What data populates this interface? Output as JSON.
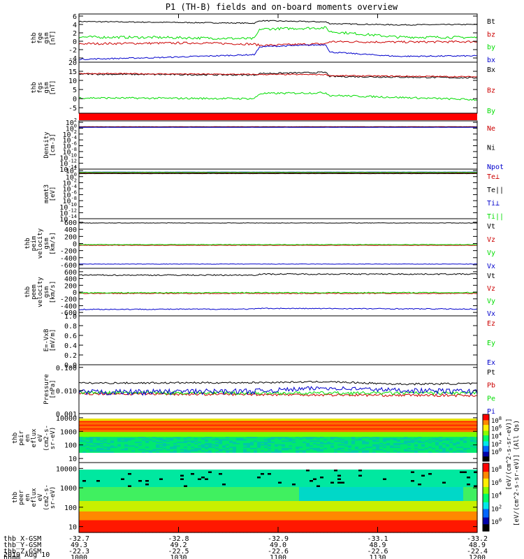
{
  "title": "P1  (TH-B) fields and on-board moments overview",
  "date": "2019 Aug 10",
  "x_axis": {
    "tick_labels": [
      "1000",
      "1030",
      "1100",
      "1130",
      "1200"
    ],
    "rows": [
      {
        "label": "thb_X-GSM",
        "values": [
          "-32.7",
          "-32.8",
          "-32.9",
          "-33.1",
          "-33.2"
        ]
      },
      {
        "label": "thb_Y-GSM",
        "values": [
          "49.3",
          "49.2",
          "49.0",
          "48.9",
          "48.9"
        ]
      },
      {
        "label": "thb_Z-GSM",
        "values": [
          "-22.3",
          "-22.5",
          "-22.6",
          "-22.6",
          "-22.4"
        ]
      },
      {
        "label": "hhmm",
        "values": [
          "1000",
          "1030",
          "1100",
          "1130",
          "1200"
        ]
      }
    ]
  },
  "colors": {
    "black": "#000000",
    "red": "#cc0000",
    "green": "#00dd00",
    "blue": "#0000cc"
  },
  "colorbar": {
    "label": "[eV/(cm^2-s-sr-eV)] (All Qs)",
    "overlap_label": "[eV/(cm^2-s-sr-eV)]",
    "ticks": [
      "10^8",
      "10^6",
      "10^4",
      "10^2",
      "10^0"
    ]
  },
  "chart_data": [
    {
      "type": "line",
      "ylabel": [
        "thb",
        "fge",
        "gsm",
        "[nT]"
      ],
      "ylim": [
        -5,
        6.5
      ],
      "yticks": [
        "6",
        "4",
        "2",
        "0",
        "-2",
        "-4"
      ],
      "tick_values": [
        6,
        4,
        2,
        0,
        -2,
        -4
      ],
      "x_range_hhmm": [
        "1000",
        "1200"
      ],
      "series": [
        {
          "name": "Bt",
          "color": "black",
          "noise": 0.12,
          "points": [
            [
              0,
              4.7
            ],
            [
              0.44,
              4.3
            ],
            [
              0.455,
              4.9
            ],
            [
              0.62,
              4.6
            ],
            [
              0.63,
              4.2
            ],
            [
              0.8,
              3.9
            ],
            [
              1,
              4.0
            ]
          ]
        },
        {
          "name": "bz",
          "color": "red",
          "noise": 0.25,
          "points": [
            [
              0,
              -0.6
            ],
            [
              0.3,
              -0.4
            ],
            [
              0.44,
              -0.7
            ],
            [
              0.455,
              -1.0
            ],
            [
              0.62,
              -0.6
            ],
            [
              0.63,
              -0.1
            ],
            [
              0.8,
              -0.2
            ],
            [
              1,
              -0.1
            ]
          ]
        },
        {
          "name": "by",
          "color": "green",
          "noise": 0.3,
          "points": [
            [
              0,
              1.0
            ],
            [
              0.2,
              0.9
            ],
            [
              0.44,
              0.6
            ],
            [
              0.455,
              2.9
            ],
            [
              0.62,
              3.2
            ],
            [
              0.63,
              2.3
            ],
            [
              0.8,
              1.0
            ],
            [
              1,
              0.9
            ]
          ]
        },
        {
          "name": "bx",
          "color": "blue",
          "noise": 0.15,
          "points": [
            [
              0,
              -4.3
            ],
            [
              0.2,
              -3.9
            ],
            [
              0.44,
              -3.2
            ],
            [
              0.455,
              -1.3
            ],
            [
              0.62,
              -0.8
            ],
            [
              0.63,
              -2.6
            ],
            [
              0.8,
              -3.6
            ],
            [
              1,
              -3.5
            ]
          ]
        }
      ]
    },
    {
      "type": "line",
      "ylabel": [
        "thb",
        "fgs",
        "gsm",
        "[nT]"
      ],
      "ylim": [
        -8,
        20
      ],
      "yticks": [
        "20",
        "15",
        "10",
        "5",
        "0",
        "-5"
      ],
      "tick_values": [
        20,
        15,
        10,
        5,
        0,
        -5
      ],
      "series": [
        {
          "name": "Bx",
          "color": "black",
          "noise": 0.4,
          "points": [
            [
              0,
              13.5
            ],
            [
              0.44,
              13.0
            ],
            [
              0.455,
              13.8
            ],
            [
              0.62,
              14.4
            ],
            [
              0.63,
              12.2
            ],
            [
              1,
              11.4
            ]
          ]
        },
        {
          "name": "Bz",
          "color": "red",
          "noise": 0.3,
          "points": [
            [
              0,
              13.8
            ],
            [
              0.44,
              13.3
            ],
            [
              0.62,
              13.2
            ],
            [
              0.63,
              12.6
            ],
            [
              1,
              12.0
            ]
          ]
        },
        {
          "name": "By",
          "color": "green",
          "noise": 0.5,
          "points": [
            [
              0,
              0.4
            ],
            [
              0.44,
              0.0
            ],
            [
              0.455,
              2.8
            ],
            [
              0.62,
              3.2
            ],
            [
              0.63,
              1.8
            ],
            [
              1,
              -0.6
            ]
          ]
        }
      ]
    },
    {
      "type": "line",
      "ylabel": [
        "Density",
        "[cm-3]"
      ],
      "scale": "log",
      "ylim_exp": [
        -14,
        2.5
      ],
      "yticks": [
        "10^2",
        "10^0",
        "10^-2",
        "10^-4",
        "10^-6",
        "10^-8",
        "10^-10",
        "10^-12",
        "10^-14"
      ],
      "tick_exps": [
        2,
        0,
        -2,
        -4,
        -6,
        -8,
        -10,
        -12,
        -14
      ],
      "series": [
        {
          "name": "Ne",
          "color": "red",
          "noise": 0.03,
          "points": [
            [
              0,
              0.5
            ],
            [
              1,
              0.5
            ]
          ]
        },
        {
          "name": "Ni",
          "color": "black",
          "noise": 0.03,
          "points": [
            [
              0,
              0.4
            ],
            [
              1,
              0.4
            ]
          ]
        },
        {
          "name": "Npot",
          "color": "blue",
          "noise": 0.03,
          "points": [
            [
              0,
              0.3
            ],
            [
              1,
              0.3
            ]
          ]
        }
      ]
    },
    {
      "type": "line",
      "ylabel": [
        "momt3",
        "[eV]"
      ],
      "scale": "log",
      "ylim_exp": [
        -14,
        2.5
      ],
      "yticks": [
        "10^2",
        "10^0",
        "10^-2",
        "10^-4",
        "10^-6",
        "10^-8",
        "10^-10",
        "10^-12",
        "10^-14"
      ],
      "tick_exps": [
        2,
        0,
        -2,
        -4,
        -6,
        -8,
        -10,
        -12,
        -14
      ],
      "series": [
        {
          "name": "Te⊥",
          "color": "red",
          "noise": 0.03,
          "points": [
            [
              0,
              1.2
            ],
            [
              1,
              1.2
            ]
          ]
        },
        {
          "name": "Te||",
          "color": "black",
          "noise": 0.03,
          "points": [
            [
              0,
              1.0
            ],
            [
              1,
              1.0
            ]
          ]
        },
        {
          "name": "Ti⊥",
          "color": "blue",
          "noise": 0.03,
          "points": [
            [
              0,
              1.5
            ],
            [
              1,
              1.5
            ]
          ]
        },
        {
          "name": "Ti||",
          "color": "green",
          "noise": 0.03,
          "points": [
            [
              0,
              1.4
            ],
            [
              1,
              1.4
            ]
          ]
        }
      ]
    },
    {
      "type": "line",
      "ylabel": [
        "thb",
        "peim",
        "velocity",
        "gsm",
        "[km/s]"
      ],
      "ylim": [
        -700,
        700
      ],
      "yticks": [
        "600",
        "400",
        "200",
        "0",
        "-200",
        "-400",
        "-600"
      ],
      "tick_values": [
        600,
        400,
        200,
        0,
        -200,
        -400,
        -600
      ],
      "series": [
        {
          "name": "Vt",
          "color": "black",
          "noise": 6,
          "points": [
            [
              0,
              580
            ],
            [
              1,
              580
            ]
          ]
        },
        {
          "name": "Vz",
          "color": "red",
          "noise": 6,
          "points": [
            [
              0,
              -50
            ],
            [
              1,
              -50
            ]
          ]
        },
        {
          "name": "Vy",
          "color": "green",
          "noise": 6,
          "points": [
            [
              0,
              -30
            ],
            [
              1,
              -30
            ]
          ]
        },
        {
          "name": "Vx",
          "color": "blue",
          "noise": 6,
          "points": [
            [
              0,
              -580
            ],
            [
              1,
              -580
            ]
          ]
        }
      ]
    },
    {
      "type": "line",
      "ylabel": [
        "thb",
        "peem",
        "velocity",
        "gsm",
        "[km/s]"
      ],
      "ylim": [
        -700,
        700
      ],
      "yticks": [
        "600",
        "400",
        "200",
        "0",
        "-200",
        "-400",
        "-600"
      ],
      "tick_values": [
        600,
        400,
        200,
        0,
        -200,
        -400,
        -600
      ],
      "series": [
        {
          "name": "Vt",
          "color": "black",
          "noise": 18,
          "points": [
            [
              0,
              500
            ],
            [
              0.44,
              500
            ],
            [
              0.455,
              530
            ],
            [
              1,
              530
            ]
          ]
        },
        {
          "name": "Vz",
          "color": "red",
          "noise": 12,
          "points": [
            [
              0,
              -40
            ],
            [
              1,
              -40
            ]
          ]
        },
        {
          "name": "Vy",
          "color": "green",
          "noise": 14,
          "points": [
            [
              0,
              -20
            ],
            [
              1,
              -15
            ]
          ]
        },
        {
          "name": "Vx",
          "color": "blue",
          "noise": 14,
          "points": [
            [
              0,
              -510
            ],
            [
              0.44,
              -500
            ],
            [
              0.455,
              -480
            ],
            [
              1,
              -500
            ]
          ]
        }
      ]
    },
    {
      "type": "line",
      "ylabel": [
        "E=-VxB",
        "[mV/m]"
      ],
      "ylim": [
        0,
        1.0
      ],
      "yticks": [
        "1.0",
        "0.8",
        "0.6",
        "0.4",
        "0.2",
        "0.0"
      ],
      "tick_values": [
        1.0,
        0.8,
        0.6,
        0.4,
        0.2,
        0.0
      ],
      "series": [
        {
          "name": "Ez",
          "color": "red",
          "points": []
        },
        {
          "name": "Ey",
          "color": "green",
          "points": []
        },
        {
          "name": "Ex",
          "color": "blue",
          "points": []
        }
      ]
    },
    {
      "type": "line",
      "ylabel": [
        "Pressure",
        "[nPa]"
      ],
      "scale": "log",
      "ylim_log": [
        0.001,
        0.13
      ],
      "yticks": [
        "0.100",
        "0.010",
        "0.001"
      ],
      "tick_values": [
        0.1,
        0.01,
        0.001
      ],
      "series": [
        {
          "name": "Pt",
          "color": "black",
          "noise": 0.0018,
          "points": [
            [
              0,
              0.021
            ],
            [
              0.44,
              0.022
            ],
            [
              0.62,
              0.024
            ],
            [
              0.8,
              0.019
            ],
            [
              1,
              0.02
            ]
          ]
        },
        {
          "name": "Pb",
          "color": "red",
          "noise": 0.0008,
          "points": [
            [
              0,
              0.0073
            ],
            [
              0.44,
              0.0068
            ],
            [
              0.62,
              0.0065
            ],
            [
              0.8,
              0.0063
            ],
            [
              1,
              0.0062
            ]
          ]
        },
        {
          "name": "Pe",
          "color": "green",
          "noise": 0.0012,
          "points": [
            [
              0,
              0.0082
            ],
            [
              0.5,
              0.0078
            ],
            [
              1,
              0.0078
            ]
          ]
        },
        {
          "name": "Pi",
          "color": "blue",
          "noise": 0.0025,
          "points": [
            [
              0,
              0.0085
            ],
            [
              0.44,
              0.0095
            ],
            [
              0.62,
              0.013
            ],
            [
              0.8,
              0.0105
            ],
            [
              1,
              0.009
            ]
          ]
        }
      ]
    },
    {
      "type": "heatmap",
      "ylabel": [
        "thb",
        "peir",
        "en",
        "eflux",
        "eV",
        "(cm2-s-",
        "sr-eV)"
      ],
      "ylim_log": [
        5,
        20000
      ],
      "yticks": [
        "10000",
        "1000",
        "100",
        "10"
      ],
      "tick_values": [
        10000,
        1000,
        100,
        10
      ]
    },
    {
      "type": "heatmap",
      "ylabel": [
        "thb",
        "peer",
        "en",
        "eflux",
        "eV",
        "(cm2-s-",
        "sr-eV)"
      ],
      "ylim_log": [
        5,
        20000
      ],
      "yticks": [
        "10000",
        "1000",
        "100",
        "10"
      ],
      "tick_values": [
        10000,
        1000,
        100,
        10
      ]
    }
  ]
}
